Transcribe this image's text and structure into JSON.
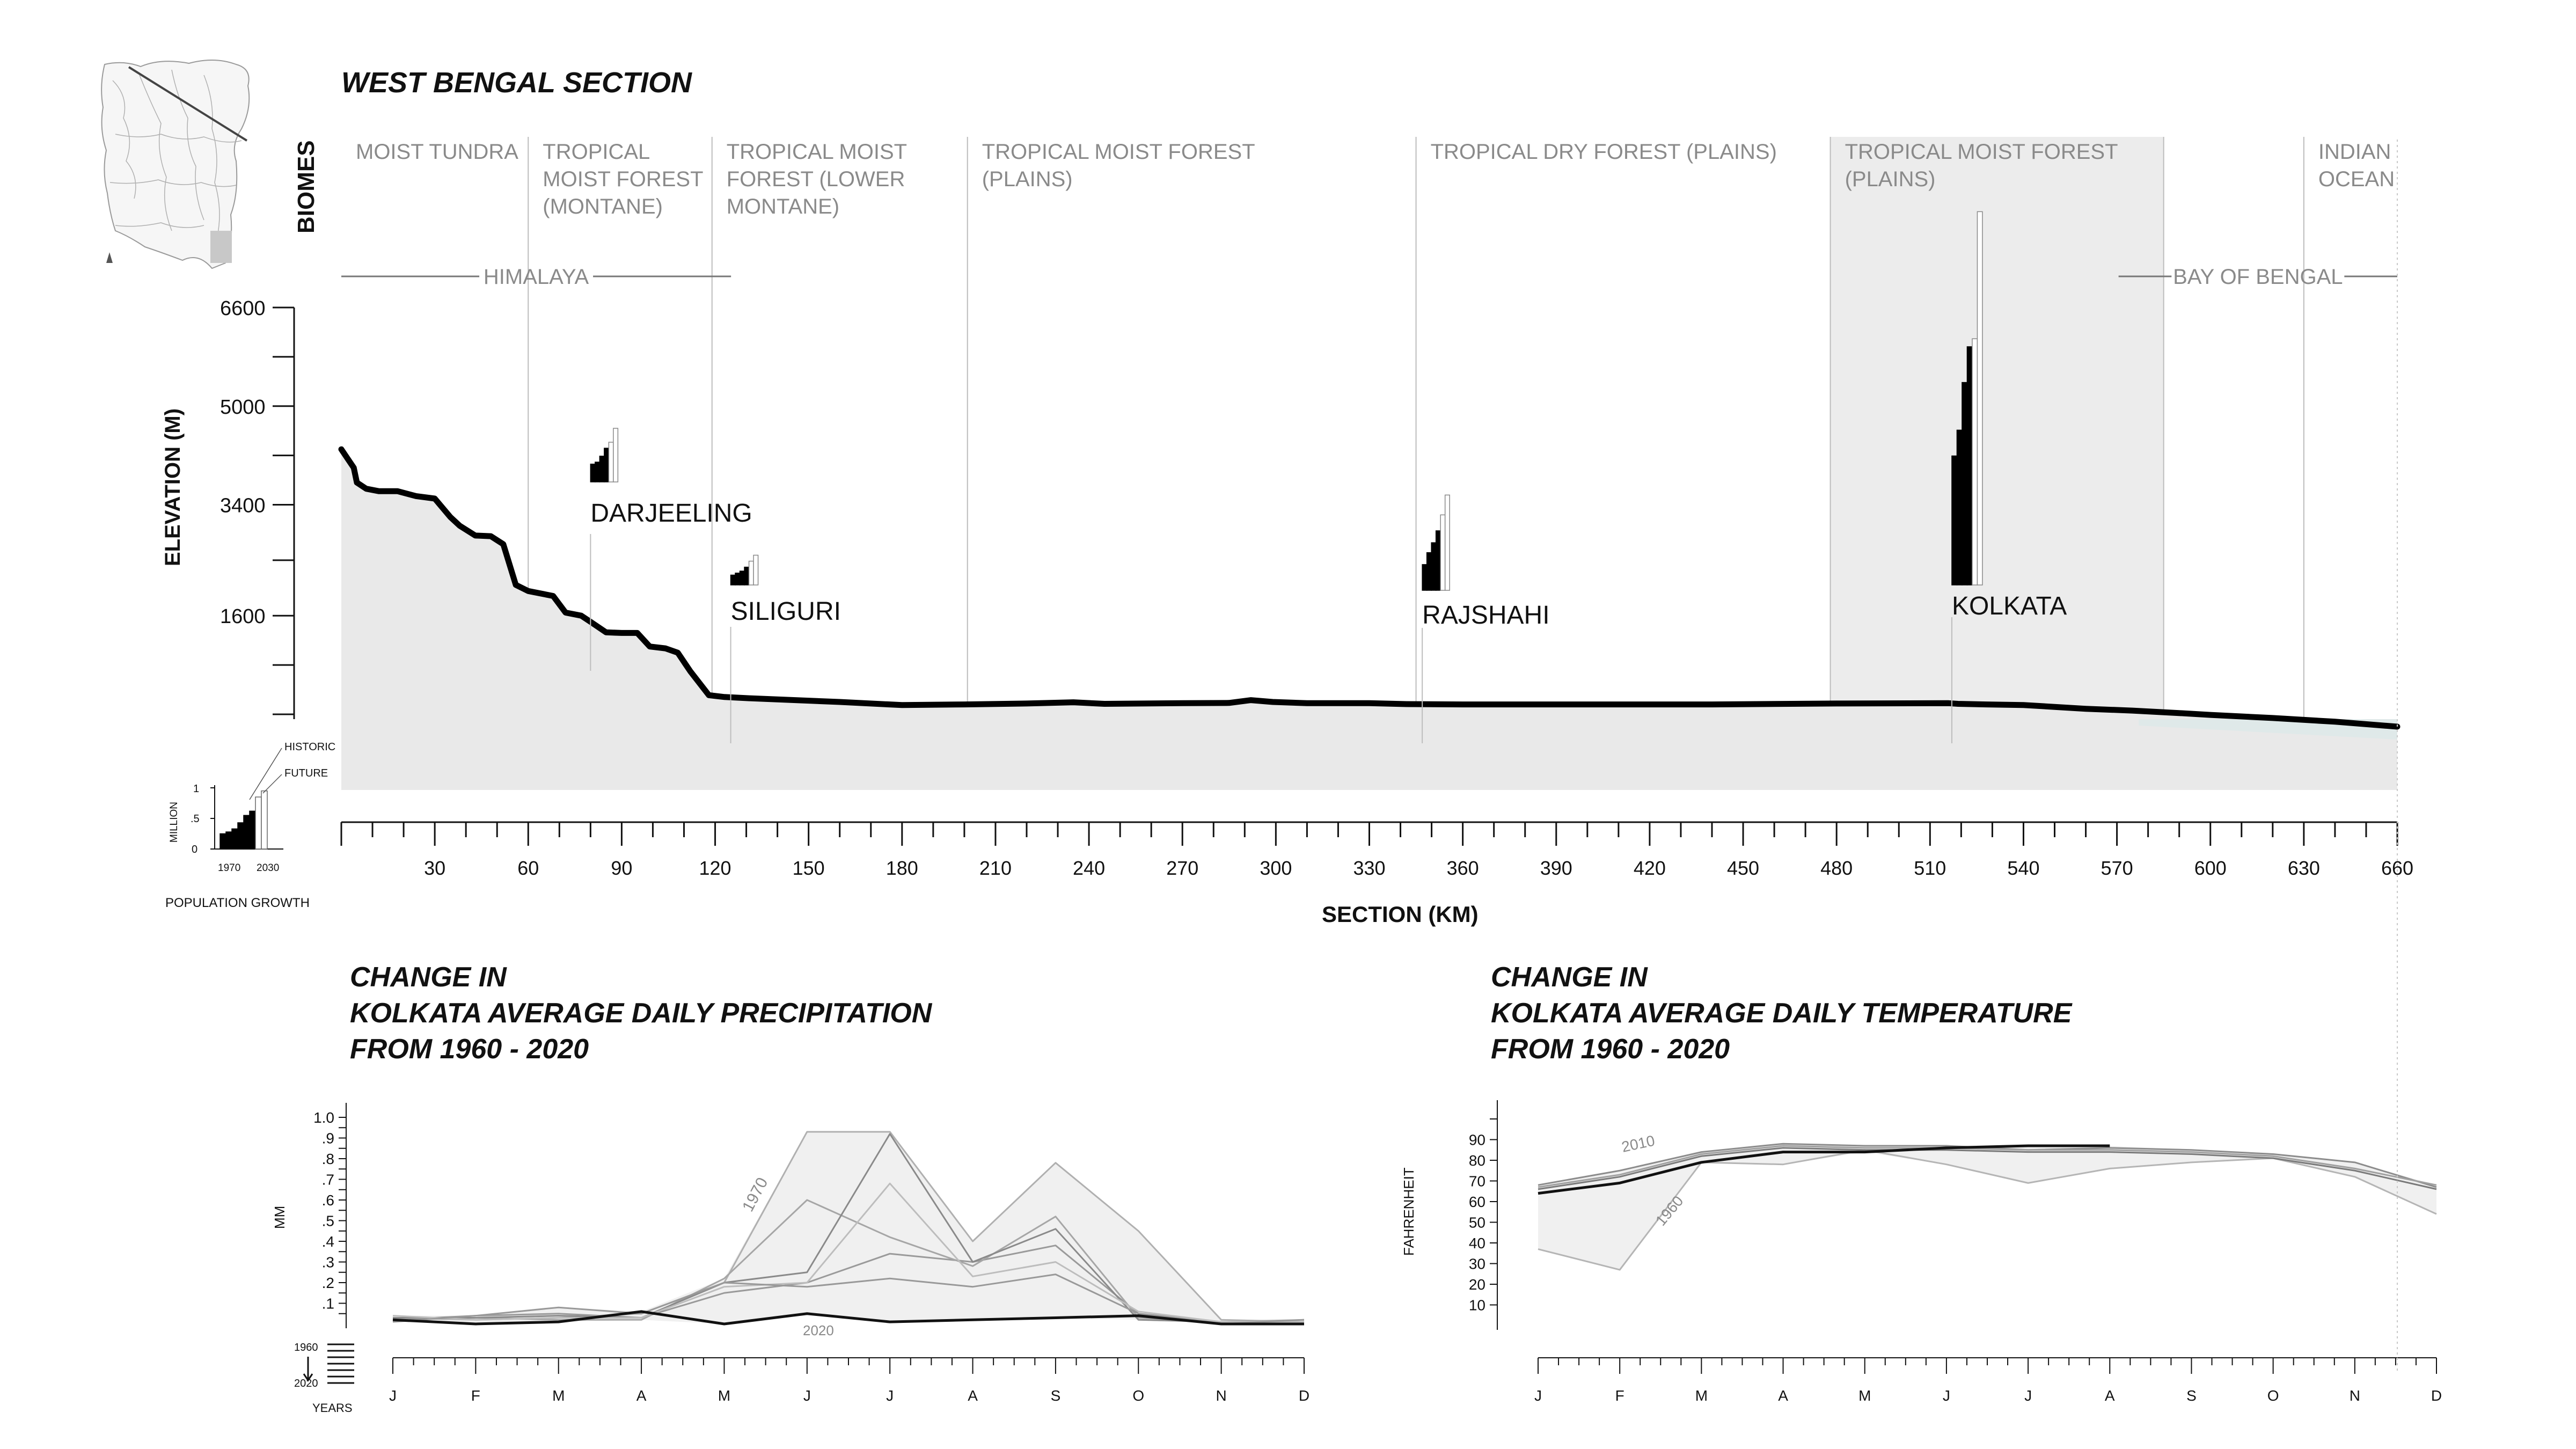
{
  "title": "WEST BENGAL SECTION",
  "biomes_label": "BIOMES",
  "biomes": [
    {
      "name": "MOIST TUNDRA",
      "start_km": 0,
      "end_km": 60
    },
    {
      "name": "TROPICAL MOIST FOREST (MONTANE)",
      "start_km": 60,
      "end_km": 119
    },
    {
      "name": "TROPICAL MOIST FOREST (LOWER MONTANE)",
      "start_km": 119,
      "end_km": 201
    },
    {
      "name": "TROPICAL MOIST FOREST (PLAINS)",
      "start_km": 201,
      "end_km": 345
    },
    {
      "name": "TROPICAL DRY FOREST (PLAINS)",
      "start_km": 345,
      "end_km": 478
    },
    {
      "name": "TROPICAL MOIST FOREST (PLAINS)",
      "start_km": 478,
      "end_km": 585,
      "highlight": true
    },
    {
      "name": "",
      "start_km": 585,
      "end_km": 630
    },
    {
      "name": "INDIAN OCEAN",
      "start_km": 630,
      "end_km": 660
    }
  ],
  "regions": [
    {
      "name": "HIMALAYA",
      "start_km": 0,
      "end_km": 122
    },
    {
      "name": "BAY OF BENGAL",
      "start_km": 580,
      "end_km": 660
    }
  ],
  "section_chart": {
    "ylabel": "ELEVATION (M)",
    "xlabel": "SECTION (KM)",
    "y_ticks": [
      "6600",
      "5000",
      "3400",
      "1600"
    ],
    "x_ticks": [
      "30",
      "60",
      "90",
      "120",
      "150",
      "180",
      "210",
      "240",
      "270",
      "300",
      "330",
      "360",
      "390",
      "420",
      "450",
      "480",
      "510",
      "540",
      "570",
      "600",
      "630",
      "660"
    ],
    "elevation_profile": [
      [
        0,
        4300
      ],
      [
        2,
        4150
      ],
      [
        4,
        4000
      ],
      [
        5,
        3760
      ],
      [
        8,
        3660
      ],
      [
        12,
        3620
      ],
      [
        18,
        3620
      ],
      [
        24,
        3540
      ],
      [
        30,
        3500
      ],
      [
        35,
        3200
      ],
      [
        38,
        3060
      ],
      [
        43,
        2900
      ],
      [
        48,
        2890
      ],
      [
        52,
        2760
      ],
      [
        56,
        2100
      ],
      [
        60,
        2000
      ],
      [
        68,
        1920
      ],
      [
        72,
        1650
      ],
      [
        77,
        1600
      ],
      [
        80,
        1500
      ],
      [
        85,
        1330
      ],
      [
        90,
        1320
      ],
      [
        95,
        1320
      ],
      [
        99,
        1100
      ],
      [
        104,
        1070
      ],
      [
        108,
        1000
      ],
      [
        112,
        700
      ],
      [
        118,
        310
      ],
      [
        123,
        280
      ],
      [
        131,
        260
      ],
      [
        160,
        200
      ],
      [
        180,
        150
      ],
      [
        200,
        160
      ],
      [
        220,
        175
      ],
      [
        235,
        195
      ],
      [
        245,
        170
      ],
      [
        270,
        180
      ],
      [
        285,
        185
      ],
      [
        292,
        230
      ],
      [
        299,
        200
      ],
      [
        310,
        180
      ],
      [
        330,
        180
      ],
      [
        342,
        165
      ],
      [
        360,
        160
      ],
      [
        400,
        160
      ],
      [
        440,
        160
      ],
      [
        480,
        175
      ],
      [
        516,
        180
      ],
      [
        519,
        170
      ],
      [
        528,
        160
      ],
      [
        540,
        150
      ],
      [
        550,
        120
      ],
      [
        560,
        90
      ],
      [
        575,
        60
      ],
      [
        590,
        20
      ],
      [
        600,
        -10
      ],
      [
        620,
        -60
      ],
      [
        640,
        -120
      ],
      [
        660,
        -200
      ]
    ],
    "ocean_band_start_km": 577
  },
  "cities": [
    {
      "name": "DARJEELING",
      "km": 80,
      "historic": [
        0.9,
        1.0,
        1.3,
        1.7
      ],
      "future": [
        2.0,
        2.7
      ]
    },
    {
      "name": "SILIGURI",
      "km": 125,
      "historic": [
        0.5,
        0.6,
        0.7,
        0.9
      ],
      "future": [
        1.2,
        1.5
      ]
    },
    {
      "name": "RAJSHAHI",
      "km": 347,
      "historic": [
        1.3,
        1.9,
        2.4,
        3.0
      ],
      "future": [
        3.8,
        4.8
      ]
    },
    {
      "name": "KOLKATA",
      "km": 517,
      "historic": [
        6.5,
        7.8,
        10.2,
        12.0
      ],
      "future": [
        12.4,
        18.8
      ]
    }
  ],
  "legend": {
    "historic_label": "HISTORIC",
    "future_label": "FUTURE",
    "unit_label": "MILLION",
    "y_ticks": [
      "1",
      ".5",
      "0"
    ],
    "x_ticks": [
      "1970",
      "2030"
    ],
    "title": "POPULATION GROWTH",
    "values": [
      0.25,
      0.28,
      0.33,
      0.43,
      0.55,
      0.62,
      0.85,
      0.95
    ]
  },
  "precip_chart": {
    "title_lines": [
      "CHANGE IN",
      "KOLKATA AVERAGE DAILY PRECIPITATION",
      "FROM 1960 - 2020"
    ],
    "ylabel": "MM",
    "y_ticks": [
      "1.0",
      ".9",
      ".8",
      ".7",
      ".6",
      ".5",
      ".4",
      ".3",
      ".2",
      ".1"
    ],
    "months": [
      "J",
      "F",
      "M",
      "A",
      "M",
      "J",
      "J",
      "A",
      "S",
      "O",
      "N",
      "D"
    ],
    "annotations": [
      "1970",
      "2020"
    ],
    "year_scale": [
      "1960",
      "2020",
      "YEARS"
    ]
  },
  "temp_chart": {
    "title_lines": [
      "CHANGE IN",
      "KOLKATA AVERAGE DAILY TEMPERATURE",
      "FROM 1960 - 2020"
    ],
    "ylabel": "FAHRENHEIT",
    "y_ticks": [
      "90",
      "80",
      "70",
      "60",
      "50",
      "40",
      "30",
      "20",
      "10"
    ],
    "months": [
      "J",
      "F",
      "M",
      "A",
      "M",
      "J",
      "J",
      "A",
      "S",
      "O",
      "N",
      "D"
    ],
    "annotations": [
      "2010",
      "1960"
    ]
  },
  "chart_data": [
    {
      "type": "area",
      "title": "WEST BENGAL SECTION",
      "xlabel": "SECTION (KM)",
      "ylabel": "ELEVATION (M)",
      "xlim": [
        0,
        660
      ],
      "ylim": [
        -500,
        6600
      ],
      "series": [
        {
          "name": "",
          "x": [
            0,
            5,
            18,
            30,
            43,
            56,
            72,
            85,
            99,
            112,
            123,
            180,
            245,
            292,
            360,
            480,
            516,
            550,
            590,
            660
          ],
          "values": [
            4300,
            3760,
            3620,
            3500,
            2900,
            2100,
            1650,
            1330,
            1100,
            700,
            280,
            150,
            170,
            230,
            160,
            175,
            180,
            120,
            20,
            -200
          ]
        }
      ]
    },
    {
      "type": "bar",
      "title": "",
      "ylabel": "",
      "categories": [
        "DARJEELING",
        "SILIGURI",
        "RAJSHAHI",
        "KOLKATA"
      ],
      "series": [
        {
          "name": "HISTORIC",
          "values": [
            1.7,
            0.9,
            3.0,
            12.0
          ]
        },
        {
          "name": "FUTURE",
          "values": [
            2.7,
            1.5,
            4.8,
            18.8
          ]
        }
      ]
    },
    {
      "type": "line",
      "title": "CHANGE IN KOLKATA AVERAGE DAILY PRECIPITATION FROM 1960 - 2020",
      "ylabel": "MM",
      "ylim": [
        0,
        1.0
      ],
      "categories": [
        "J",
        "F",
        "M",
        "A",
        "M",
        "J",
        "J",
        "A",
        "S",
        "O",
        "N",
        "D"
      ],
      "series": [
        {
          "name": "",
          "values": [
            0.02,
            0.04,
            0.05,
            0.03,
            0.15,
            0.2,
            0.34,
            0.3,
            0.38,
            0.05,
            0.01,
            0.01
          ]
        },
        {
          "name": "1970",
          "values": [
            0.03,
            0.02,
            0.03,
            0.05,
            0.2,
            0.93,
            0.93,
            0.4,
            0.78,
            0.45,
            0.02,
            0.01
          ]
        },
        {
          "name": "",
          "values": [
            0.02,
            0.03,
            0.02,
            0.02,
            0.22,
            0.6,
            0.42,
            0.28,
            0.52,
            0.03,
            0.01,
            0.02
          ]
        },
        {
          "name": "",
          "values": [
            0.03,
            0.03,
            0.04,
            0.03,
            0.2,
            0.25,
            0.92,
            0.3,
            0.46,
            0.02,
            0.01,
            0.01
          ]
        },
        {
          "name": "",
          "values": [
            0.04,
            0.02,
            0.03,
            0.03,
            0.18,
            0.2,
            0.68,
            0.23,
            0.3,
            0.06,
            0.01,
            0.01
          ]
        },
        {
          "name": "",
          "values": [
            0.01,
            0.04,
            0.08,
            0.05,
            0.2,
            0.18,
            0.22,
            0.18,
            0.24,
            0.05,
            0.0,
            0.02
          ]
        },
        {
          "name": "2020",
          "values": [
            0.02,
            0.0,
            0.01,
            0.06,
            0.0,
            0.05,
            0.01,
            0.02,
            0.03,
            0.04,
            0.0,
            0.0
          ]
        }
      ]
    },
    {
      "type": "line",
      "title": "CHANGE IN KOLKATA AVERAGE DAILY TEMPERATURE FROM 1960 - 2020",
      "ylabel": "FAHRENHEIT",
      "ylim": [
        0,
        100
      ],
      "categories": [
        "J",
        "F",
        "M",
        "A",
        "M",
        "J",
        "J",
        "A",
        "S",
        "O",
        "N",
        "D"
      ],
      "series": [
        {
          "name": "1960",
          "values": [
            37,
            27,
            79,
            78,
            85,
            78,
            69,
            76,
            79,
            81,
            72,
            54
          ]
        },
        {
          "name": "2010",
          "values": [
            68,
            75,
            84,
            88,
            87,
            87,
            85,
            86,
            85,
            83,
            79,
            67
          ]
        },
        {
          "name": "",
          "values": [
            67,
            73,
            83,
            87,
            86,
            86,
            85,
            85,
            84,
            82,
            76,
            68
          ]
        },
        {
          "name": "",
          "values": [
            66,
            72,
            82,
            86,
            85,
            85,
            84,
            84,
            83,
            81,
            75,
            66
          ]
        },
        {
          "name": "",
          "values": [
            64,
            69,
            79,
            84,
            84,
            86,
            87,
            87,
            null,
            null,
            null,
            null
          ]
        }
      ]
    }
  ]
}
